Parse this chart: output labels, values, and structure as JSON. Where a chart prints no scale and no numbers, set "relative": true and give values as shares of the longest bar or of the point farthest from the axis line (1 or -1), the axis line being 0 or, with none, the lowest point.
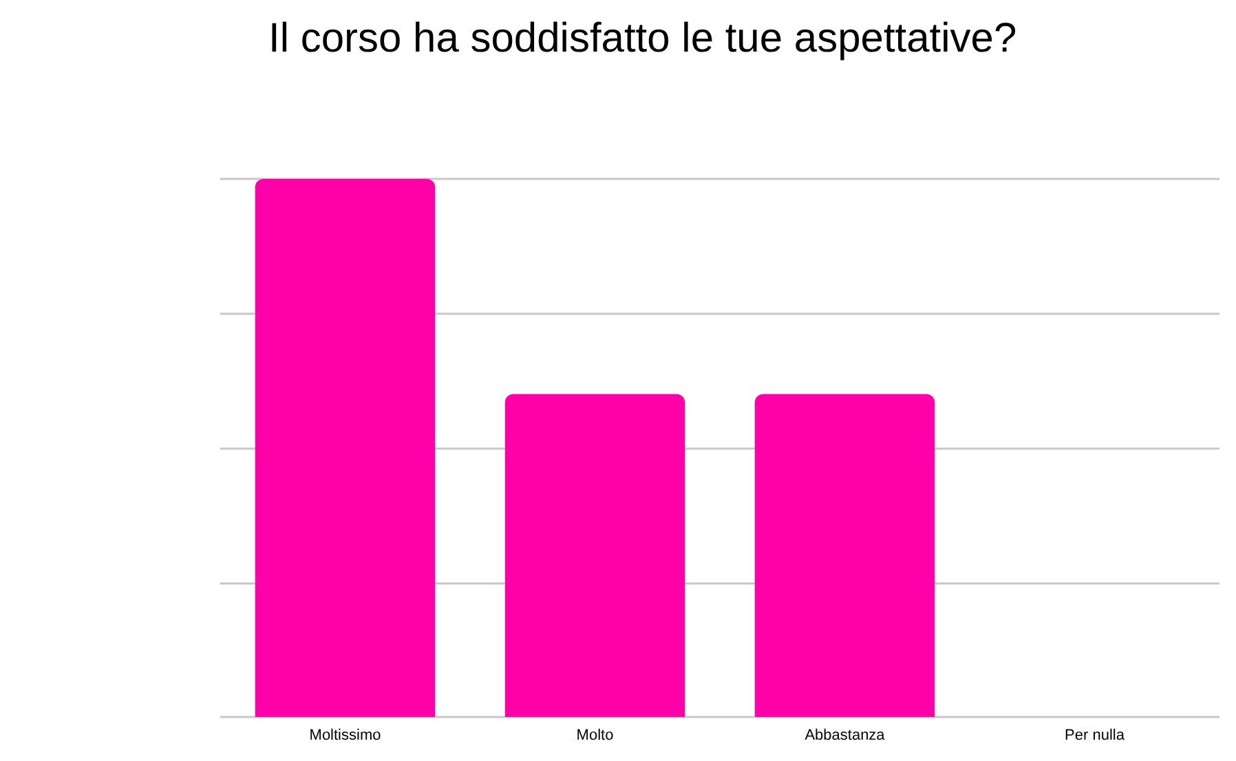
{
  "chart_data": {
    "type": "bar",
    "title": "Il corso ha soddisfatto le tue aspettative?",
    "categories": [
      "Moltissimo",
      "Molto",
      "Abbastanza",
      "Per nulla"
    ],
    "series": [
      {
        "color": "#ff00a8",
        "values": [
          1,
          0.6,
          0.6,
          0
        ]
      }
    ],
    "relative": true,
    "grid": "y"
  }
}
